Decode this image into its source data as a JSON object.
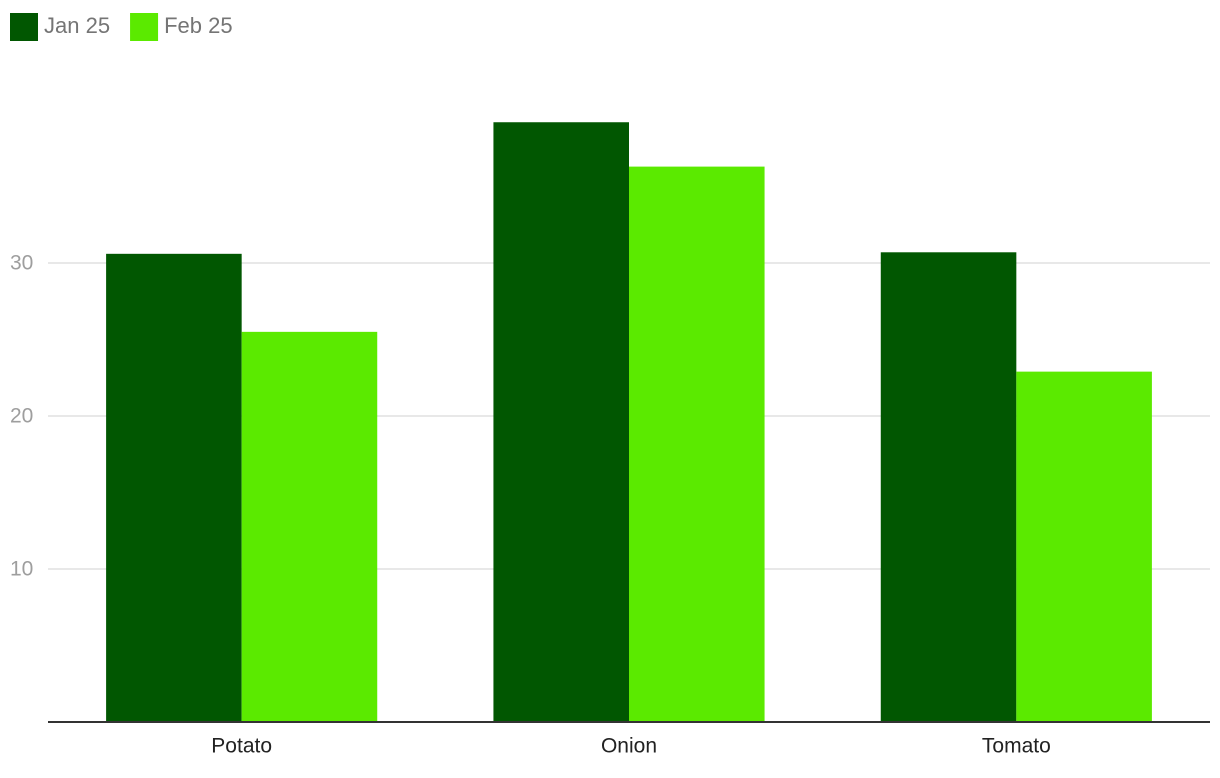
{
  "chart_data": {
    "type": "bar",
    "categories": [
      "Potato",
      "Onion",
      "Tomato"
    ],
    "series": [
      {
        "name": "Jan 25",
        "color": "#015701",
        "values": [
          30.6,
          39.2,
          30.7
        ]
      },
      {
        "name": "Feb 25",
        "color": "#5bea00",
        "values": [
          25.5,
          36.3,
          22.9
        ]
      }
    ],
    "ylim": [
      0,
      40
    ],
    "yticks": [
      10,
      20,
      30
    ],
    "grid": true,
    "legend": "top-left"
  }
}
